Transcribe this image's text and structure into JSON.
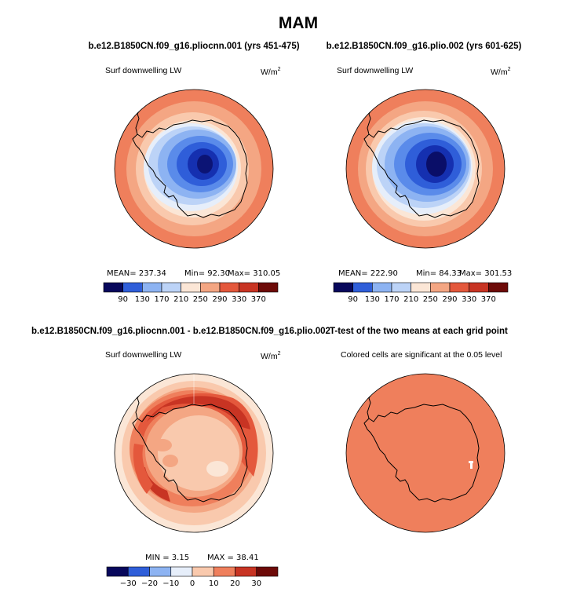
{
  "figure": {
    "season": "MAM"
  },
  "colorbars": {
    "abs": {
      "levels": [
        "90",
        "130",
        "170",
        "210",
        "250",
        "290",
        "330",
        "370"
      ]
    },
    "diff": {
      "levels": [
        "-30",
        "-20",
        "-10",
        "0",
        "10",
        "20",
        "30"
      ]
    },
    "colors": [
      "#08085c",
      "#1530b0",
      "#2f5ed9",
      "#5a8bea",
      "#8db3f2",
      "#bcd3f7",
      "#e6eefa",
      "#fbe6d6",
      "#f9c9ad",
      "#f4a683",
      "#ef7f5c",
      "#e4583c",
      "#c83423",
      "#9e1a12",
      "#6d0a08"
    ]
  },
  "chart_data": [
    {
      "type": "heatmap",
      "projection": "south-polar-stereographic",
      "title": "b.e12.B1850CN.f09_g16.pliocnn.001 (yrs 451-475)",
      "left_label": "Surf downwelling LW",
      "units_base": "W/m",
      "units_exp": "2",
      "stats": {
        "mean": "MEAN= 237.34",
        "min": "Min= 92.30",
        "max": "Max= 310.05"
      },
      "color_levels": [
        90,
        130,
        170,
        210,
        250,
        290,
        330,
        370
      ]
    },
    {
      "type": "heatmap",
      "projection": "south-polar-stereographic",
      "title": "b.e12.B1850CN.f09_g16.plio.002 (yrs 601-625)",
      "left_label": "Surf downwelling LW",
      "units_base": "W/m",
      "units_exp": "2",
      "stats": {
        "mean": "MEAN= 222.90",
        "min": "Min= 84.33",
        "max": "Max= 301.53"
      },
      "color_levels": [
        90,
        130,
        170,
        210,
        250,
        290,
        330,
        370
      ]
    },
    {
      "type": "heatmap",
      "projection": "south-polar-stereographic",
      "title": "b.e12.B1850CN.f09_g16.pliocnn.001 - b.e12.B1850CN.f09_g16.plio.002",
      "left_label": "Surf downwelling LW",
      "units_base": "W/m",
      "units_exp": "2",
      "stats": {
        "min": "MIN = 3.15",
        "max": "MAX = 38.41"
      },
      "color_levels": [
        -30,
        -20,
        -10,
        0,
        10,
        20,
        30
      ]
    },
    {
      "type": "heatmap",
      "projection": "south-polar-stereographic",
      "title": "T-test of the two means at each grid point",
      "left_label": "Colored cells are significant at the 0.05 level"
    }
  ]
}
